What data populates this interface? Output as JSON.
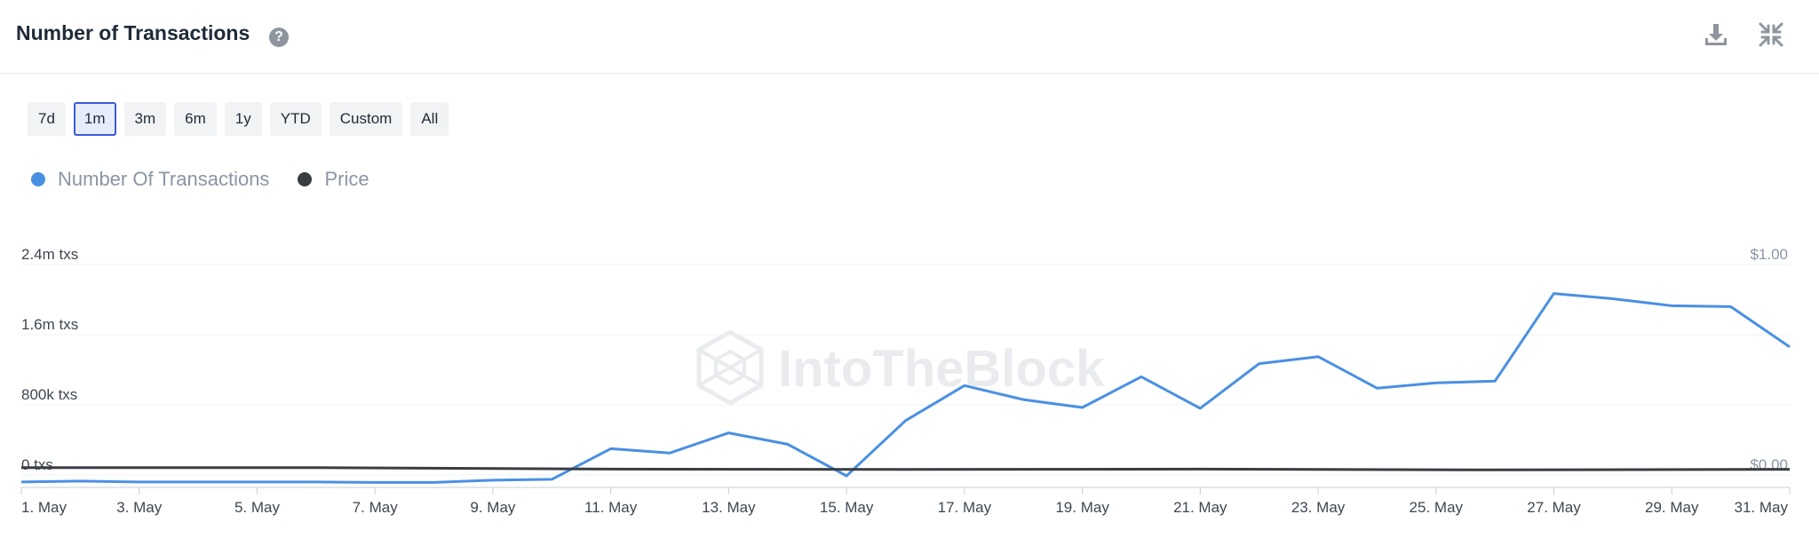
{
  "header": {
    "title": "Number of Transactions",
    "help_glyph": "?",
    "help_icon": "question-circle-icon",
    "download_icon": "download-icon",
    "collapse_icon": "collapse-icon"
  },
  "ranges": [
    {
      "label": "7d",
      "active": false
    },
    {
      "label": "1m",
      "active": true
    },
    {
      "label": "3m",
      "active": false
    },
    {
      "label": "6m",
      "active": false
    },
    {
      "label": "1y",
      "active": false
    },
    {
      "label": "YTD",
      "active": false
    },
    {
      "label": "Custom",
      "active": false
    },
    {
      "label": "All",
      "active": false
    }
  ],
  "legend": [
    {
      "name": "Number Of Transactions",
      "color": "#4a90e2"
    },
    {
      "name": "Price",
      "color": "#3a3d42"
    }
  ],
  "watermark": "IntoTheBlock",
  "chart_data": {
    "type": "line",
    "x_tick_labels": [
      "1. May",
      "3. May",
      "5. May",
      "7. May",
      "9. May",
      "11. May",
      "13. May",
      "15. May",
      "17. May",
      "19. May",
      "21. May",
      "23. May",
      "25. May",
      "27. May",
      "29. May",
      "31. May"
    ],
    "y_left": {
      "ticks": [
        0,
        800000,
        1600000,
        2400000
      ],
      "tick_labels": [
        "0 txs",
        "800k txs",
        "1.6m txs",
        "2.4m txs"
      ],
      "range": [
        0,
        2400000
      ]
    },
    "y_right": {
      "ticks": [
        0,
        1
      ],
      "tick_labels": [
        "$0.00",
        "$1.00"
      ],
      "range": [
        0,
        1
      ]
    },
    "grid": true,
    "series": [
      {
        "name": "Number Of Transactions",
        "axis": "left",
        "color": "#4a90e2",
        "days": [
          1,
          2,
          3,
          4,
          5,
          6,
          7,
          8,
          9,
          10,
          11,
          12,
          13,
          14,
          15,
          16,
          17,
          18,
          19,
          20,
          21,
          22,
          23,
          24,
          25,
          26,
          27,
          28,
          29,
          30,
          31
        ],
        "values": [
          -80000,
          -70000,
          -80000,
          -80000,
          -80000,
          -80000,
          -85000,
          -85000,
          -60000,
          -50000,
          300000,
          250000,
          480000,
          350000,
          -10000,
          620000,
          1020000,
          860000,
          770000,
          1120000,
          760000,
          1270000,
          1350000,
          990000,
          1050000,
          1070000,
          2070000,
          2010000,
          1930000,
          1920000,
          1460000
        ]
      },
      {
        "name": "Price",
        "axis": "right",
        "color": "#3a3d42",
        "days": [
          1,
          6,
          11,
          16,
          21,
          26,
          31
        ],
        "values": [
          0.035,
          0.035,
          0.028,
          0.026,
          0.028,
          0.024,
          0.027
        ]
      }
    ]
  }
}
